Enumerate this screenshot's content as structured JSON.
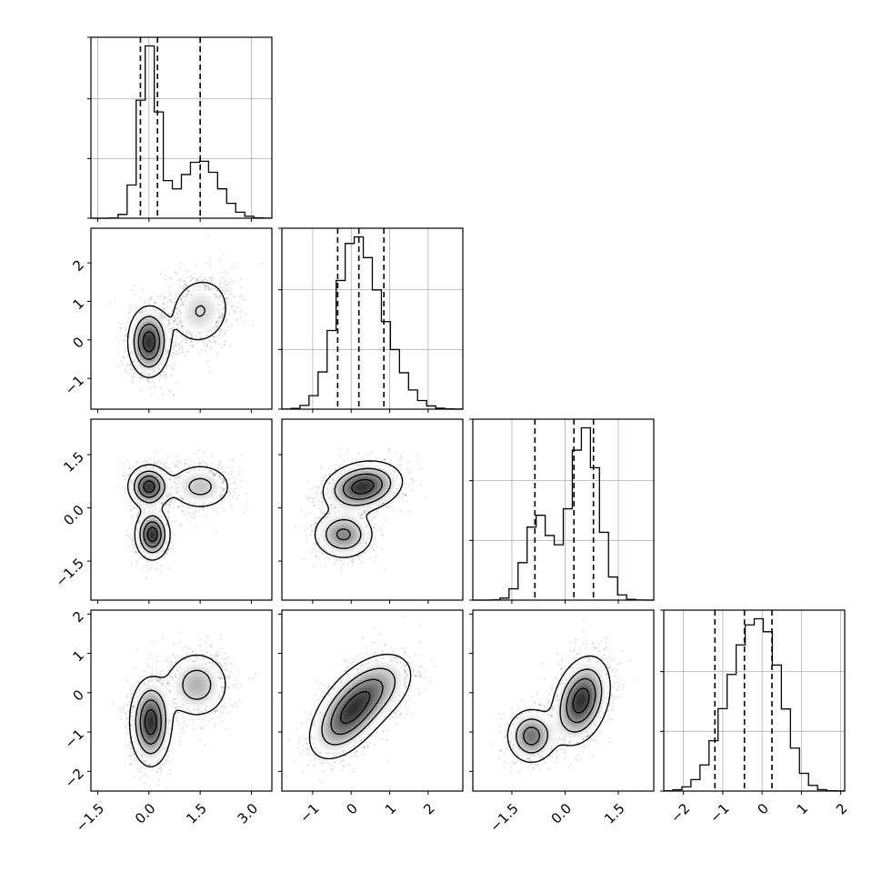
{
  "chart_data": {
    "type": "corner",
    "grid": true,
    "variables": [
      {
        "axis_range": [
          -1.7,
          3.6
        ],
        "ticks": [
          -1.5,
          0.0,
          1.5,
          3.0
        ],
        "tick_labels": [
          "−1.5",
          "0.0",
          "1.5",
          "3.0"
        ],
        "quantiles": [
          -0.25,
          0.25,
          1.5
        ],
        "components": [
          {
            "weight": 0.6,
            "mean": 0.0,
            "sd": 0.28
          },
          {
            "weight": 0.4,
            "mean": 1.5,
            "sd": 0.55
          }
        ]
      },
      {
        "axis_range": [
          -1.8,
          2.9
        ],
        "ticks": [
          -1,
          0,
          1,
          2
        ],
        "tick_labels": [
          "−1",
          "0",
          "1",
          "2"
        ],
        "quantiles": [
          -0.35,
          0.2,
          0.85
        ],
        "components": [
          {
            "weight": 0.6,
            "mean": 0.0,
            "sd": 0.45
          },
          {
            "weight": 0.4,
            "mean": 0.7,
            "sd": 0.55
          }
        ]
      },
      {
        "axis_range": [
          -2.6,
          2.5
        ],
        "ticks": [
          -1.5,
          0.0,
          1.5
        ],
        "tick_labels": [
          "−1.5",
          "0.0",
          "1.5"
        ],
        "quantiles": [
          -0.85,
          0.25,
          0.8
        ],
        "components": [
          {
            "weight": 0.3,
            "mean": -0.75,
            "sd": 0.35
          },
          {
            "weight": 0.7,
            "mean": 0.55,
            "sd": 0.4
          }
        ]
      },
      {
        "axis_range": [
          -2.5,
          2.1
        ],
        "ticks": [
          -2,
          -1,
          0,
          1,
          2
        ],
        "tick_labels": [
          "−2",
          "−1",
          "0",
          "1",
          "2"
        ],
        "quantiles": [
          -1.2,
          -0.45,
          0.25
        ],
        "components": [
          {
            "weight": 0.6,
            "mean": -0.5,
            "sd": 0.55
          },
          {
            "weight": 0.4,
            "mean": 0.2,
            "sd": 0.45
          }
        ]
      }
    ],
    "pairs": [
      {
        "x": 0,
        "y": 1,
        "modes": [
          {
            "mx": 0.0,
            "my": -0.05,
            "sx": 0.3,
            "sy": 0.45,
            "rho": 0.0,
            "w": 0.6
          },
          {
            "mx": 1.5,
            "my": 0.75,
            "sx": 0.5,
            "sy": 0.5,
            "rho": 0.1,
            "w": 0.4
          }
        ]
      },
      {
        "x": 0,
        "y": 2,
        "modes": [
          {
            "mx": 0.0,
            "my": 0.6,
            "sx": 0.3,
            "sy": 0.3,
            "rho": 0.0,
            "w": 0.35
          },
          {
            "mx": 1.5,
            "my": 0.6,
            "sx": 0.5,
            "sy": 0.35,
            "rho": 0.0,
            "w": 0.3
          },
          {
            "mx": 0.1,
            "my": -0.75,
            "sx": 0.25,
            "sy": 0.35,
            "rho": 0.0,
            "w": 0.35
          }
        ]
      },
      {
        "x": 1,
        "y": 2,
        "modes": [
          {
            "mx": 0.3,
            "my": 0.6,
            "sx": 0.5,
            "sy": 0.35,
            "rho": 0.2,
            "w": 0.65
          },
          {
            "mx": -0.2,
            "my": -0.75,
            "sx": 0.4,
            "sy": 0.35,
            "rho": 0.0,
            "w": 0.35
          }
        ]
      },
      {
        "x": 0,
        "y": 3,
        "modes": [
          {
            "mx": 0.05,
            "my": -0.75,
            "sx": 0.3,
            "sy": 0.55,
            "rho": 0.0,
            "w": 0.6
          },
          {
            "mx": 1.4,
            "my": 0.2,
            "sx": 0.5,
            "sy": 0.45,
            "rho": 0.0,
            "w": 0.4
          }
        ]
      },
      {
        "x": 1,
        "y": 3,
        "modes": [
          {
            "mx": -0.1,
            "my": -0.6,
            "sx": 0.5,
            "sy": 0.55,
            "rho": 0.5,
            "w": 0.6
          },
          {
            "mx": 0.6,
            "my": 0.1,
            "sx": 0.55,
            "sy": 0.5,
            "rho": 0.4,
            "w": 0.4
          }
        ]
      },
      {
        "x": 2,
        "y": 3,
        "modes": [
          {
            "mx": -0.95,
            "my": -1.1,
            "sx": 0.35,
            "sy": 0.35,
            "rho": 0.0,
            "w": 0.3
          },
          {
            "mx": 0.45,
            "my": -0.2,
            "sx": 0.4,
            "sy": 0.55,
            "rho": 0.3,
            "w": 0.7
          }
        ]
      }
    ]
  }
}
